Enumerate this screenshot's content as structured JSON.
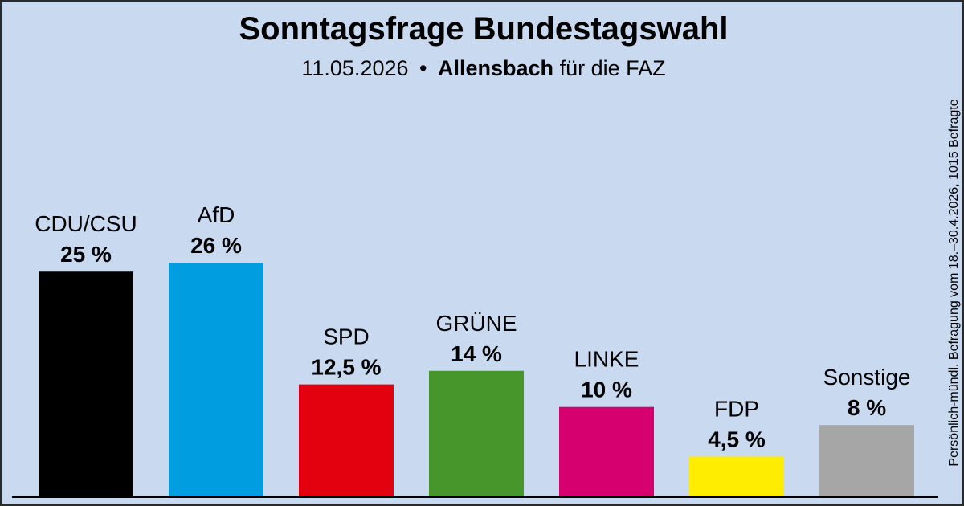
{
  "title": "Sonntagsfrage Bundestagswahl",
  "subtitle": {
    "date": "11.05.2026",
    "separator": "•",
    "institute": "Allensbach",
    "client": "für die FAZ"
  },
  "side_note": "Persönlich-mündl. Befragung vom 18.–30.4.2026, 1015 Befragte",
  "colors": {
    "background": "#c8d9f0"
  },
  "chart_data": {
    "type": "bar",
    "categories": [
      "CDU/CSU",
      "AfD",
      "SPD",
      "GRÜNE",
      "LINKE",
      "FDP",
      "Sonstige"
    ],
    "values": [
      25,
      26,
      12.5,
      14,
      10,
      4.5,
      8
    ],
    "value_labels": [
      "25 %",
      "26 %",
      "12,5 %",
      "14 %",
      "10 %",
      "4,5 %",
      "8 %"
    ],
    "colors": [
      "#000000",
      "#009ee0",
      "#e3000f",
      "#46962b",
      "#d6006f",
      "#ffed00",
      "#a6a6a6"
    ],
    "title": "Sonntagsfrage Bundestagswahl",
    "xlabel": "",
    "ylabel": "",
    "ylim": [
      0,
      26
    ],
    "grid": false,
    "legend": "none"
  }
}
